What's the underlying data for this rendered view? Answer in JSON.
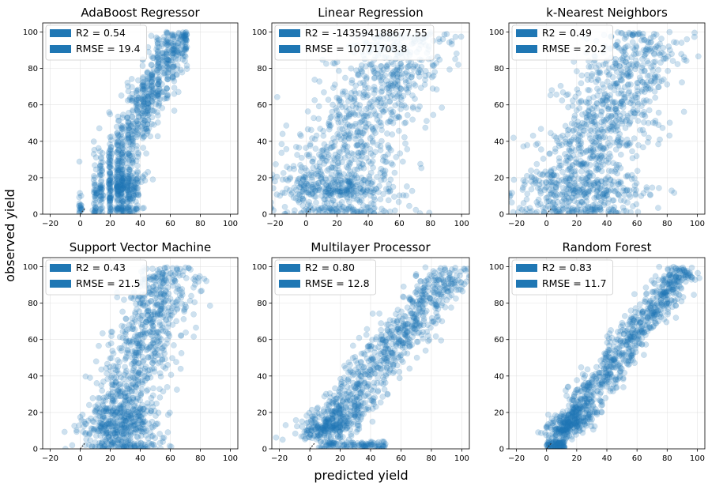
{
  "figure": {
    "xlabel": "predicted yield",
    "ylabel": "observed yield",
    "point_color": "#1f77b4",
    "point_alpha": 0.22
  },
  "chart_data": [
    {
      "type": "scatter",
      "title": "AdaBoost Regressor",
      "xlim": [
        -25,
        105
      ],
      "ylim": [
        0,
        105
      ],
      "xticks": [
        -20,
        0,
        20,
        40,
        60,
        80,
        100
      ],
      "yticks": [
        0,
        20,
        40,
        60,
        80,
        100
      ],
      "legend": [
        "R2 = 0.54",
        "RMSE = 19.4"
      ],
      "legend_position": "upper-left",
      "model": "adaboost",
      "n_points": 1100
    },
    {
      "type": "scatter",
      "title": "Linear Regression",
      "xlim": [
        -22,
        105
      ],
      "ylim": [
        0,
        105
      ],
      "xticks": [
        -20,
        0,
        20,
        40,
        60,
        80,
        100
      ],
      "yticks": [
        0,
        20,
        40,
        60,
        80,
        100
      ],
      "legend": [
        "R2 = -143594188677.55",
        "RMSE = 10771703.8"
      ],
      "legend_position": "upper-left",
      "model": "linear",
      "n_points": 1100
    },
    {
      "type": "scatter",
      "title": "k-Nearest Neighbors",
      "xlim": [
        -25,
        105
      ],
      "ylim": [
        0,
        105
      ],
      "xticks": [
        -20,
        0,
        20,
        40,
        60,
        80,
        100
      ],
      "yticks": [
        0,
        20,
        40,
        60,
        80,
        100
      ],
      "legend": [
        "R2 = 0.49",
        "RMSE = 20.2"
      ],
      "legend_position": "upper-left",
      "model": "knn",
      "n_points": 1100
    },
    {
      "type": "scatter",
      "title": "Support Vector Machine",
      "xlim": [
        -25,
        105
      ],
      "ylim": [
        0,
        105
      ],
      "xticks": [
        -20,
        0,
        20,
        40,
        60,
        80,
        100
      ],
      "yticks": [
        0,
        20,
        40,
        60,
        80,
        100
      ],
      "legend": [
        "R2 = 0.43",
        "RMSE = 21.5"
      ],
      "legend_position": "upper-left",
      "model": "svm",
      "n_points": 1100
    },
    {
      "type": "scatter",
      "title": "Multilayer Processor",
      "xlim": [
        -25,
        105
      ],
      "ylim": [
        0,
        105
      ],
      "xticks": [
        -20,
        0,
        20,
        40,
        60,
        80,
        100
      ],
      "yticks": [
        0,
        20,
        40,
        60,
        80,
        100
      ],
      "legend": [
        "R2 = 0.80",
        "RMSE = 12.8"
      ],
      "legend_position": "upper-left",
      "model": "mlp",
      "n_points": 1100
    },
    {
      "type": "scatter",
      "title": "Random Forest",
      "xlim": [
        -25,
        105
      ],
      "ylim": [
        0,
        105
      ],
      "xticks": [
        -20,
        0,
        20,
        40,
        60,
        80,
        100
      ],
      "yticks": [
        0,
        20,
        40,
        60,
        80,
        100
      ],
      "legend": [
        "R2 = 0.83",
        "RMSE = 11.7"
      ],
      "legend_position": "upper-left",
      "model": "rf",
      "n_points": 1100
    }
  ]
}
